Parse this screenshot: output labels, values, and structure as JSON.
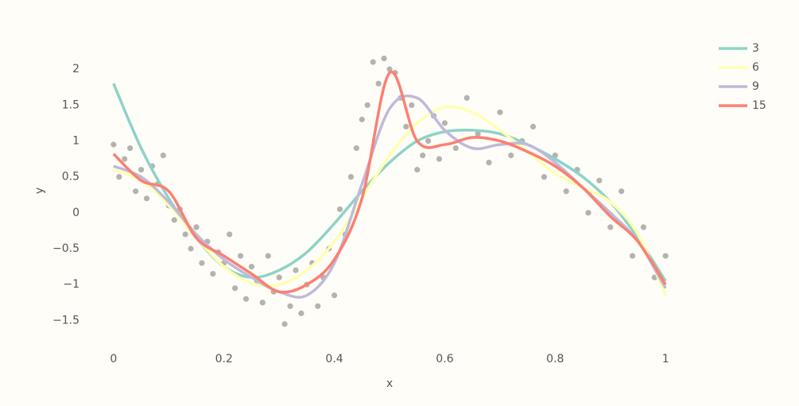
{
  "chart_data": {
    "type": "line",
    "xlabel": "x",
    "ylabel": "y",
    "xlim": [
      -0.03,
      1.03
    ],
    "ylim": [
      -1.85,
      2.3
    ],
    "xticks": [
      0,
      0.2,
      0.4,
      0.6,
      0.8,
      1
    ],
    "yticks": [
      {
        "value": -1.5,
        "label": "−1.5"
      },
      {
        "value": -1,
        "label": "−1"
      },
      {
        "value": -0.5,
        "label": "−0.5"
      },
      0,
      0.5,
      1,
      1.5,
      2
    ],
    "grid": false,
    "legend": "top-right",
    "points": {
      "color": "#777777",
      "x": [
        0.0,
        0.01,
        0.02,
        0.03,
        0.04,
        0.05,
        0.06,
        0.07,
        0.08,
        0.09,
        0.1,
        0.11,
        0.12,
        0.13,
        0.14,
        0.15,
        0.16,
        0.17,
        0.18,
        0.19,
        0.2,
        0.21,
        0.22,
        0.23,
        0.24,
        0.25,
        0.26,
        0.27,
        0.28,
        0.29,
        0.3,
        0.31,
        0.32,
        0.33,
        0.34,
        0.35,
        0.36,
        0.37,
        0.38,
        0.39,
        0.4,
        0.41,
        0.42,
        0.43,
        0.44,
        0.45,
        0.46,
        0.47,
        0.48,
        0.49,
        0.5,
        0.51,
        0.52,
        0.53,
        0.54,
        0.55,
        0.56,
        0.57,
        0.58,
        0.59,
        0.6,
        0.62,
        0.64,
        0.66,
        0.68,
        0.7,
        0.72,
        0.74,
        0.76,
        0.78,
        0.8,
        0.82,
        0.84,
        0.86,
        0.88,
        0.9,
        0.92,
        0.94,
        0.96,
        0.98,
        1.0
      ],
      "y": [
        0.95,
        0.5,
        0.75,
        0.9,
        0.3,
        0.6,
        0.2,
        0.65,
        0.4,
        0.8,
        0.1,
        -0.1,
        0.05,
        -0.3,
        -0.5,
        -0.2,
        -0.7,
        -0.4,
        -0.85,
        -0.55,
        -0.7,
        -0.3,
        -1.05,
        -0.6,
        -1.2,
        -0.75,
        -0.95,
        -1.25,
        -0.6,
        -1.1,
        -0.9,
        -1.55,
        -1.3,
        -0.8,
        -1.4,
        -1.0,
        -0.7,
        -1.3,
        -0.9,
        -0.5,
        -1.15,
        0.05,
        -0.3,
        0.5,
        0.9,
        1.3,
        1.5,
        2.1,
        1.8,
        2.15,
        2.0,
        1.95,
        1.6,
        1.2,
        1.5,
        0.6,
        0.8,
        1.0,
        1.35,
        0.75,
        1.25,
        0.9,
        1.6,
        1.1,
        0.7,
        1.4,
        0.8,
        1.0,
        1.2,
        0.5,
        0.8,
        0.3,
        0.6,
        0.0,
        0.45,
        -0.2,
        0.3,
        -0.6,
        -0.2,
        -0.9,
        -0.6
      ]
    },
    "x": [
      0,
      0.05,
      0.1,
      0.15,
      0.2,
      0.25,
      0.3,
      0.35,
      0.4,
      0.45,
      0.5,
      0.55,
      0.6,
      0.65,
      0.7,
      0.75,
      0.8,
      0.85,
      0.9,
      0.95,
      1
    ],
    "series": [
      {
        "name": "3",
        "color": "#8dd3c7",
        "values": [
          1.8,
          0.9,
          0.2,
          -0.35,
          -0.75,
          -0.9,
          -0.8,
          -0.55,
          -0.15,
          0.3,
          0.7,
          1.0,
          1.13,
          1.15,
          1.1,
          0.95,
          0.75,
          0.5,
          0.15,
          -0.35,
          -0.95
        ]
      },
      {
        "name": "6",
        "color": "#ffffb3",
        "values": [
          0.6,
          0.45,
          0.1,
          -0.35,
          -0.75,
          -0.98,
          -1.0,
          -0.8,
          -0.4,
          0.2,
          0.8,
          1.25,
          1.47,
          1.4,
          1.15,
          0.85,
          0.55,
          0.35,
          0.15,
          -0.3,
          -1.15
        ]
      },
      {
        "name": "9",
        "color": "#bebada",
        "values": [
          0.65,
          0.5,
          0.15,
          -0.3,
          -0.65,
          -0.9,
          -1.1,
          -1.15,
          -0.7,
          0.4,
          1.45,
          1.6,
          1.15,
          0.9,
          0.95,
          0.95,
          0.7,
          0.35,
          0.0,
          -0.4,
          -1.05
        ]
      },
      {
        "name": "15",
        "color": "#fb8072",
        "values": [
          0.82,
          0.45,
          0.3,
          -0.35,
          -0.6,
          -0.85,
          -1.1,
          -1.0,
          -0.65,
          0.2,
          1.95,
          1.0,
          0.95,
          1.05,
          1.0,
          0.85,
          0.65,
          0.35,
          -0.05,
          -0.4,
          -1.0
        ]
      }
    ]
  }
}
